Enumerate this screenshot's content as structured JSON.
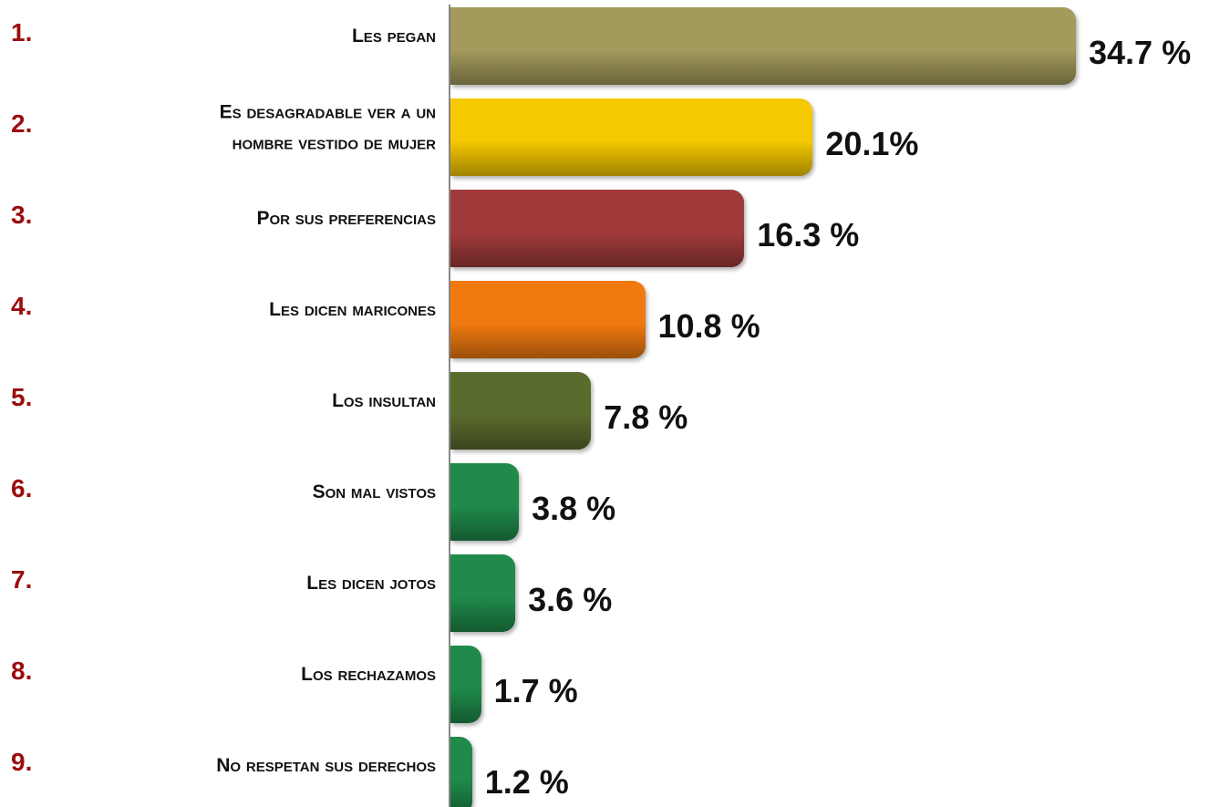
{
  "chart_data": {
    "type": "bar",
    "orientation": "horizontal",
    "ranks": [
      "1.",
      "2.",
      "3.",
      "4.",
      "5.",
      "6.",
      "7.",
      "8.",
      "9."
    ],
    "categories": [
      "Les pegan",
      "Es desagradable ver a un hombre vestido de mujer",
      "Por sus preferencias",
      "Les dicen maricones",
      "Los insultan",
      "Son mal vistos",
      "Les dicen jotos",
      "Los rechazamos",
      "No respetan sus derechos"
    ],
    "values": [
      34.7,
      20.1,
      16.3,
      10.8,
      7.8,
      3.8,
      3.6,
      1.7,
      1.2
    ],
    "value_labels": [
      "34.7 %",
      "20.1%",
      "16.3 %",
      "10.8 %",
      "7.8 %",
      "3.8 %",
      "3.6 %",
      "1.7 %",
      "1.2 %"
    ],
    "colors": [
      "#a39a5c",
      "#f5c800",
      "#a03a3a",
      "#f07a10",
      "#5a6b2e",
      "#1f8a4a",
      "#1f8a4a",
      "#1f8a4a",
      "#1f8a4a"
    ]
  }
}
